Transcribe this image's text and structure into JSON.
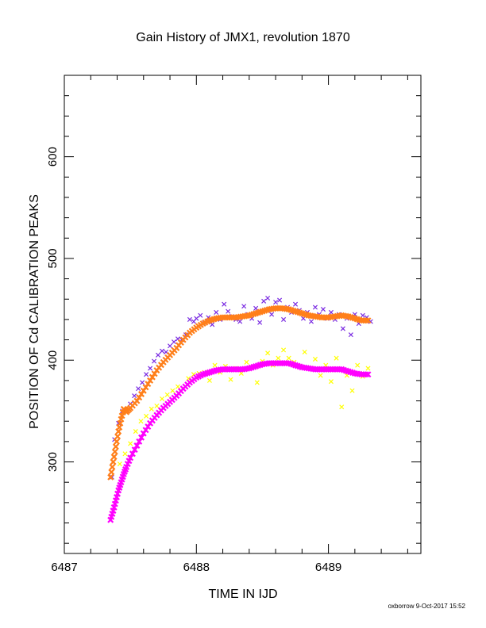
{
  "chart_data": {
    "type": "scatter",
    "title": "Gain History of JMX1, revolution 1870",
    "xlabel": "TIME IN IJD",
    "ylabel": "POSITION OF Cd CALIBRATION PEAKS",
    "xlim": [
      6487,
      6489.7
    ],
    "ylim": [
      210,
      680
    ],
    "x_ticks": [
      6487,
      6488,
      6489
    ],
    "x_tick_labels": [
      "6487",
      "6488",
      "6489"
    ],
    "y_ticks": [
      300,
      400,
      500,
      600
    ],
    "y_tick_labels": [
      "300",
      "400",
      "500",
      "600"
    ],
    "grid": false,
    "footer_text": "oxborrow  9-Oct-2017 15:52",
    "colors": {
      "purple_points": "#7a2be2",
      "orange_fit": "#ff7f1a",
      "yellow_points": "#ffff00",
      "magenta_fit": "#ff00ff"
    },
    "series": [
      {
        "marker": "x",
        "color": "#7a2be2",
        "x": [
          6487.36,
          6487.38,
          6487.41,
          6487.44,
          6487.47,
          6487.5,
          6487.53,
          6487.56,
          6487.59,
          6487.62,
          6487.65,
          6487.68,
          6487.71,
          6487.74,
          6487.77,
          6487.8,
          6487.83,
          6487.86,
          6487.89,
          6487.92,
          6487.95,
          6487.98,
          6488.0,
          6488.03,
          6488.06,
          6488.09,
          6488.12,
          6488.15,
          6488.18,
          6488.21,
          6488.24,
          6488.27,
          6488.3,
          6488.33,
          6488.36,
          6488.39,
          6488.42,
          6488.45,
          6488.48,
          6488.51,
          6488.54,
          6488.57,
          6488.6,
          6488.63,
          6488.66,
          6488.69,
          6488.72,
          6488.75,
          6488.78,
          6488.81,
          6488.84,
          6488.87,
          6488.9,
          6488.93,
          6488.96,
          6488.99,
          6489.02,
          6489.05,
          6489.08,
          6489.11,
          6489.14,
          6489.17,
          6489.2,
          6489.23,
          6489.26,
          6489.29,
          6489.32
        ],
        "y": [
          285,
          322,
          338,
          350,
          350,
          357,
          365,
          372,
          378,
          386,
          392,
          399,
          405,
          409,
          408,
          414,
          418,
          421,
          420,
          425,
          440,
          438,
          441,
          444,
          437,
          442,
          435,
          447,
          440,
          455,
          448,
          443,
          440,
          438,
          453,
          445,
          441,
          451,
          437,
          458,
          461,
          445,
          457,
          459,
          440,
          452,
          447,
          455,
          449,
          441,
          447,
          438,
          452,
          445,
          450,
          441,
          447,
          440,
          445,
          431,
          441,
          425,
          445,
          436,
          444,
          442,
          438
        ]
      },
      {
        "marker": "x",
        "color": "#ff7f1a",
        "x": [
          6487.35,
          6487.37,
          6487.39,
          6487.41,
          6487.43,
          6487.45,
          6487.47,
          6487.5,
          6487.55,
          6487.6,
          6487.65,
          6487.7,
          6487.75,
          6487.8,
          6487.85,
          6487.9,
          6487.95,
          6488.0,
          6488.05,
          6488.1,
          6488.15,
          6488.2,
          6488.25,
          6488.3,
          6488.35,
          6488.4,
          6488.45,
          6488.5,
          6488.55,
          6488.6,
          6488.65,
          6488.7,
          6488.75,
          6488.8,
          6488.85,
          6488.9,
          6488.95,
          6489.0,
          6489.05,
          6489.1,
          6489.15,
          6489.2,
          6489.25,
          6489.3
        ],
        "y": [
          285,
          300,
          315,
          330,
          342,
          352,
          349,
          353,
          360,
          370,
          380,
          390,
          398,
          405,
          412,
          420,
          427,
          432,
          436,
          439,
          441,
          442,
          442,
          442,
          443,
          444,
          446,
          448,
          450,
          451,
          451,
          450,
          448,
          446,
          444,
          443,
          442,
          442,
          443,
          444,
          443,
          441,
          439,
          439
        ]
      },
      {
        "marker": "x",
        "color": "#ffff00",
        "x": [
          6487.42,
          6487.46,
          6487.5,
          6487.54,
          6487.58,
          6487.62,
          6487.66,
          6487.7,
          6487.74,
          6487.78,
          6487.82,
          6487.86,
          6487.9,
          6487.94,
          6487.98,
          6488.02,
          6488.06,
          6488.1,
          6488.14,
          6488.18,
          6488.22,
          6488.26,
          6488.3,
          6488.34,
          6488.38,
          6488.42,
          6488.46,
          6488.5,
          6488.54,
          6488.58,
          6488.62,
          6488.66,
          6488.7,
          6488.74,
          6488.78,
          6488.82,
          6488.86,
          6488.9,
          6488.94,
          6488.98,
          6489.02,
          6489.06,
          6489.1,
          6489.14,
          6489.18,
          6489.22,
          6489.26,
          6489.3
        ],
        "y": [
          298,
          308,
          318,
          330,
          340,
          345,
          352,
          355,
          362,
          366,
          370,
          374,
          372,
          382,
          386,
          387,
          388,
          380,
          395,
          388,
          394,
          381,
          392,
          387,
          398,
          393,
          378,
          399,
          407,
          395,
          402,
          410,
          402,
          398,
          394,
          408,
          392,
          401,
          385,
          395,
          379,
          402,
          354,
          385,
          370,
          395,
          384,
          392
        ]
      },
      {
        "marker": "x",
        "color": "#ff00ff",
        "x": [
          6487.35,
          6487.37,
          6487.39,
          6487.41,
          6487.43,
          6487.45,
          6487.47,
          6487.5,
          6487.55,
          6487.6,
          6487.65,
          6487.7,
          6487.75,
          6487.8,
          6487.85,
          6487.9,
          6487.95,
          6488.0,
          6488.05,
          6488.1,
          6488.15,
          6488.2,
          6488.25,
          6488.3,
          6488.35,
          6488.4,
          6488.45,
          6488.5,
          6488.55,
          6488.6,
          6488.65,
          6488.7,
          6488.75,
          6488.8,
          6488.85,
          6488.9,
          6488.95,
          6489.0,
          6489.05,
          6489.1,
          6489.15,
          6489.2,
          6489.25,
          6489.3
        ],
        "y": [
          243,
          252,
          262,
          272,
          280,
          288,
          295,
          304,
          316,
          328,
          338,
          346,
          353,
          359,
          365,
          372,
          378,
          383,
          386,
          388,
          390,
          391,
          391,
          391,
          391,
          392,
          394,
          396,
          397,
          397,
          397,
          397,
          395,
          393,
          392,
          391,
          391,
          391,
          391,
          391,
          389,
          387,
          386,
          386
        ]
      }
    ]
  }
}
